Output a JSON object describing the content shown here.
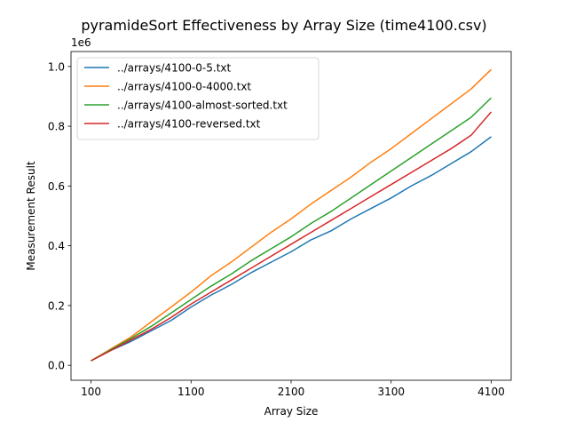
{
  "chart_data": {
    "type": "line",
    "title": "pyramideSort Effectiveness by Array Size (time4100.csv)",
    "xlabel": "Array Size",
    "ylabel": "Measurement Result",
    "y_offset_text": "1e6",
    "xlim": [
      -100,
      4300
    ],
    "ylim": [
      -0.05,
      1.05
    ],
    "x_ticks": [
      100,
      1100,
      2100,
      3100,
      4100
    ],
    "y_ticks": [
      0.0,
      0.2,
      0.4,
      0.6,
      0.8,
      1.0
    ],
    "y_tick_labels": [
      "0.0",
      "0.2",
      "0.4",
      "0.6",
      "0.8",
      "1.0"
    ],
    "grid": false,
    "legend_position": "upper-left",
    "x": [
      100,
      300,
      500,
      700,
      900,
      1100,
      1300,
      1500,
      1700,
      1900,
      2100,
      2300,
      2500,
      2700,
      2900,
      3100,
      3300,
      3500,
      3700,
      3900,
      4100
    ],
    "series": [
      {
        "name": "../arrays/4100-0-5.txt",
        "color": "#1f77b4",
        "values": [
          0.015,
          0.05,
          0.08,
          0.115,
          0.15,
          0.195,
          0.235,
          0.27,
          0.31,
          0.345,
          0.38,
          0.42,
          0.45,
          0.49,
          0.525,
          0.56,
          0.6,
          0.635,
          0.675,
          0.715,
          0.765
        ]
      },
      {
        "name": "../arrays/4100-0-4000.txt",
        "color": "#ff7f0e",
        "values": [
          0.015,
          0.055,
          0.095,
          0.145,
          0.195,
          0.245,
          0.3,
          0.345,
          0.395,
          0.445,
          0.49,
          0.54,
          0.585,
          0.63,
          0.68,
          0.725,
          0.775,
          0.825,
          0.875,
          0.925,
          0.99
        ]
      },
      {
        "name": "../arrays/4100-almost-sorted.txt",
        "color": "#2ca02c",
        "values": [
          0.015,
          0.053,
          0.09,
          0.13,
          0.175,
          0.22,
          0.265,
          0.305,
          0.35,
          0.39,
          0.43,
          0.475,
          0.515,
          0.56,
          0.605,
          0.65,
          0.695,
          0.74,
          0.785,
          0.83,
          0.895
        ]
      },
      {
        "name": "../arrays/4100-reversed.txt",
        "color": "#d62728",
        "values": [
          0.015,
          0.05,
          0.085,
          0.12,
          0.16,
          0.205,
          0.245,
          0.285,
          0.325,
          0.365,
          0.405,
          0.445,
          0.485,
          0.525,
          0.565,
          0.605,
          0.645,
          0.685,
          0.725,
          0.77,
          0.848
        ]
      }
    ]
  }
}
